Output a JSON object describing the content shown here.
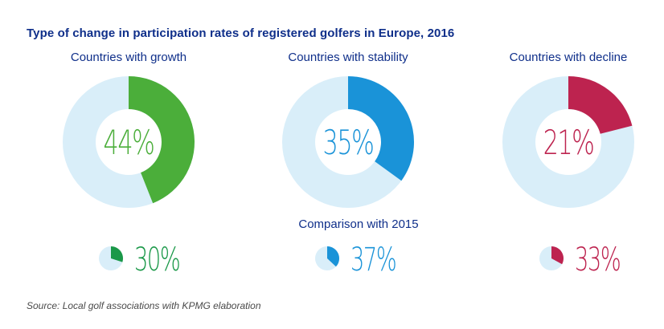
{
  "chart_data": [
    {
      "type": "pie",
      "variant": "donut",
      "title": "Type of change in participation rates of registered golfers in Europe, 2016",
      "subtitle": "Countries with growth",
      "value": 44,
      "label": "44%",
      "color": "#4bae3a",
      "remainder_color": "#d9eef9",
      "comparison": {
        "label": "Comparison with 2015",
        "value": 30,
        "text": "30%",
        "color": "#1a9848"
      }
    },
    {
      "type": "pie",
      "variant": "donut",
      "title": "Type of change in participation rates of registered golfers in Europe, 2016",
      "subtitle": "Countries with stability",
      "value": 35,
      "label": "35%",
      "color": "#1a93d8",
      "remainder_color": "#d9eef9",
      "comparison": {
        "label": "Comparison with 2015",
        "value": 37,
        "text": "37%",
        "color": "#1a93d8"
      }
    },
    {
      "type": "pie",
      "variant": "donut",
      "title": "Type of change in participation rates of registered golfers in Europe, 2016",
      "subtitle": "Countries with decline",
      "value": 21,
      "label": "21%",
      "color": "#bd234f",
      "remainder_color": "#d9eef9",
      "comparison": {
        "label": "Comparison with 2015",
        "value": 33,
        "text": "33%",
        "color": "#bd234f"
      }
    }
  ],
  "header": {
    "title": "Type of change in participation rates of registered golfers in Europe, 2016"
  },
  "subtitles": [
    "Countries with growth",
    "Countries with stability",
    "Countries with decline"
  ],
  "comparison_label": "Comparison with 2015",
  "footer": {
    "source": "Source: Local golf associations with KPMG elaboration"
  },
  "colors": {
    "title": "#0f2f8a",
    "track": "#d9eef9",
    "growth": "#4bae3a",
    "growth_2015": "#1a9848",
    "stability": "#1a93d8",
    "decline": "#bd234f"
  }
}
